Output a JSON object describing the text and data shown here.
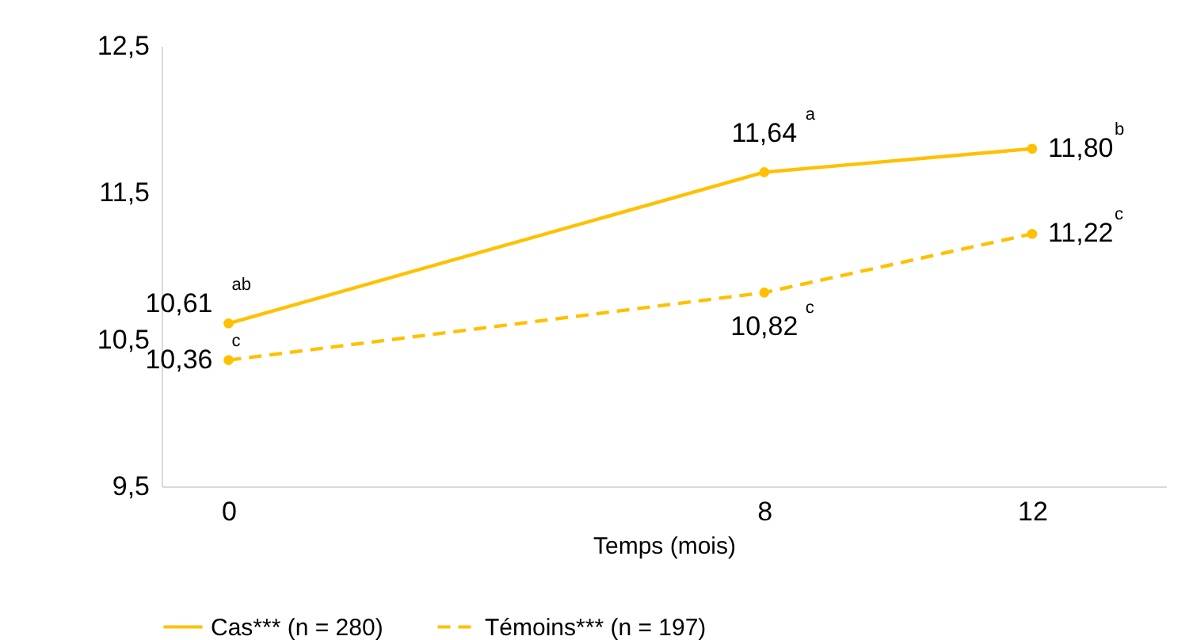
{
  "chart_data": {
    "type": "line",
    "xlabel": "Temps (mois)",
    "x": [
      0,
      8,
      12
    ],
    "xlim": [
      -1,
      14
    ],
    "xticks": [
      0,
      8,
      12
    ],
    "ylim": [
      9.5,
      12.5
    ],
    "yticks": [
      {
        "value": 9.5,
        "label": "9,5"
      },
      {
        "value": 10.5,
        "label": "10,5"
      },
      {
        "value": 11.5,
        "label": "11,5"
      },
      {
        "value": 12.5,
        "label": "12,5"
      }
    ],
    "series": [
      {
        "name": "Cas*** (n = 280)",
        "color": "#ffc000",
        "values": [
          10.61,
          11.64,
          11.8
        ],
        "line_style": "solid",
        "value_labels": [
          "10,61$^{ab}$",
          "11,64$^{a}$",
          "11,80$^{b}$"
        ]
      },
      {
        "name": "Témoins*** (n = 197)",
        "color": "#ffc000",
        "values": [
          10.36,
          10.82,
          11.22
        ],
        "line_style": "dashed",
        "value_labels": [
          "10,36$^{c}$",
          "10,82$^{c}$",
          "11,22$^{c}$"
        ]
      }
    ],
    "marker": "circle",
    "grid": false,
    "legend": "bottom"
  }
}
